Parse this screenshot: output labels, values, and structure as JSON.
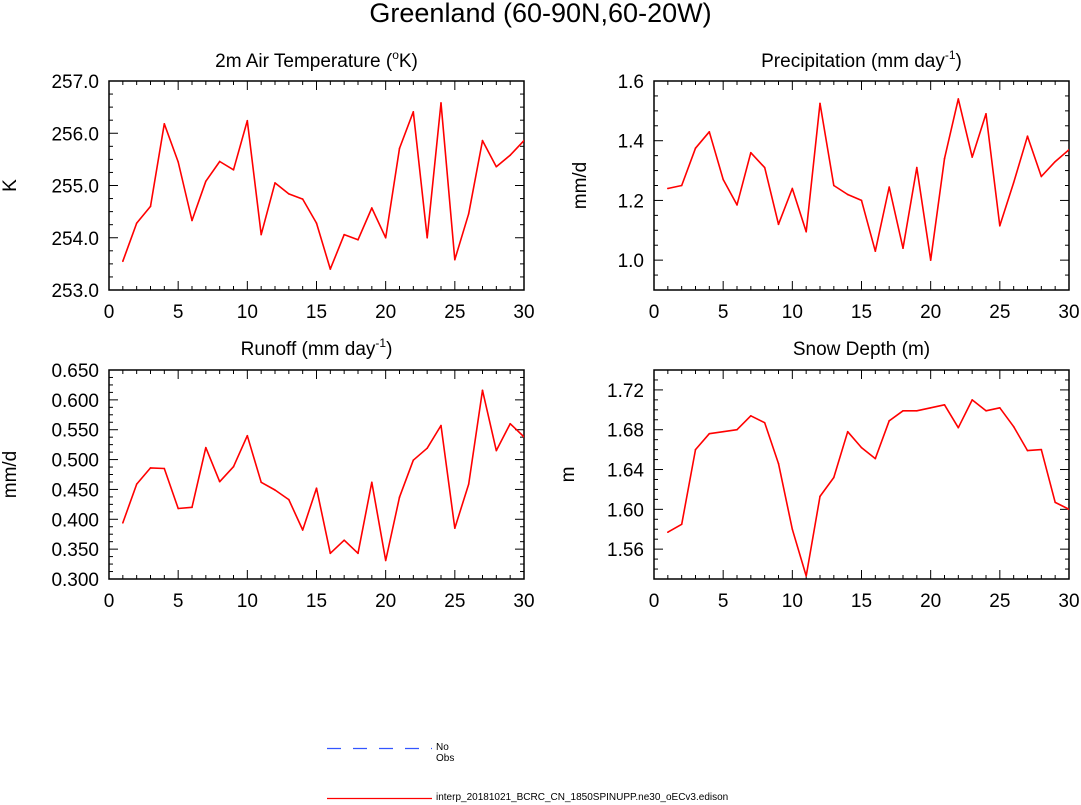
{
  "figure": {
    "title": "Greenland (60-90N,60-20W)",
    "line_color": "#ff0000",
    "legend": [
      {
        "label": "No Obs",
        "color": "#3355ff",
        "style": "dashed"
      },
      {
        "label": "interp_20181021_BCRC_CN_1850SPINUPP.ne30_oECv3.edison",
        "color": "#ff0000",
        "style": "solid"
      }
    ]
  },
  "chart_data": [
    {
      "type": "line",
      "title": "2m Air Temperature (",
      "title_sup": "o",
      "title_tail": "K)",
      "xlabel": "",
      "ylabel": "K",
      "xlim": [
        0,
        30
      ],
      "ylim": [
        253.0,
        257.0
      ],
      "xticks": [
        0,
        5,
        10,
        15,
        20,
        25,
        30
      ],
      "yticks": [
        "253.0",
        "254.0",
        "255.0",
        "256.0",
        "257.0"
      ],
      "x": [
        1,
        2,
        3,
        4,
        5,
        6,
        7,
        8,
        9,
        10,
        11,
        12,
        13,
        14,
        15,
        16,
        17,
        18,
        19,
        20,
        21,
        22,
        23,
        24,
        25,
        26,
        27,
        28,
        29,
        30
      ],
      "values": [
        253.55,
        254.28,
        254.6,
        256.18,
        255.45,
        254.33,
        255.08,
        255.46,
        255.3,
        256.24,
        254.06,
        255.05,
        254.84,
        254.74,
        254.28,
        253.4,
        254.06,
        253.96,
        254.57,
        254.0,
        255.71,
        256.41,
        254.0,
        256.58,
        253.58,
        254.46,
        255.86,
        255.36,
        255.58,
        255.86
      ],
      "series_name": "interp_20181021_BCRC_CN_1850SPINUPP.ne30_oECv3.edison"
    },
    {
      "type": "line",
      "title": "Precipitation (mm day",
      "title_sup": "-1",
      "title_tail": ")",
      "xlabel": "",
      "ylabel": "mm/d",
      "xlim": [
        0,
        30
      ],
      "ylim": [
        0.9,
        1.6
      ],
      "xticks": [
        0,
        5,
        10,
        15,
        20,
        25,
        30
      ],
      "yticks": [
        "1.0",
        "1.2",
        "1.4",
        "1.6"
      ],
      "x": [
        1,
        2,
        3,
        4,
        5,
        6,
        7,
        8,
        9,
        10,
        11,
        12,
        13,
        14,
        15,
        16,
        17,
        18,
        19,
        20,
        21,
        22,
        23,
        24,
        25,
        26,
        27,
        28,
        29,
        30
      ],
      "values": [
        1.24,
        1.25,
        1.375,
        1.43,
        1.27,
        1.185,
        1.36,
        1.31,
        1.12,
        1.24,
        1.095,
        1.525,
        1.25,
        1.22,
        1.2,
        1.03,
        1.245,
        1.04,
        1.31,
        1.0,
        1.34,
        1.54,
        1.345,
        1.49,
        1.115,
        1.26,
        1.415,
        1.28,
        1.33,
        1.37
      ],
      "series_name": "interp_20181021_BCRC_CN_1850SPINUPP.ne30_oECv3.edison"
    },
    {
      "type": "line",
      "title": "Runoff (mm day",
      "title_sup": "-1",
      "title_tail": ")",
      "xlabel": "",
      "ylabel": "mm/d",
      "xlim": [
        0,
        30
      ],
      "ylim": [
        0.3,
        0.65
      ],
      "xticks": [
        0,
        5,
        10,
        15,
        20,
        25,
        30
      ],
      "yticks": [
        "0.300",
        "0.350",
        "0.400",
        "0.450",
        "0.500",
        "0.550",
        "0.600",
        "0.650"
      ],
      "x": [
        1,
        2,
        3,
        4,
        5,
        6,
        7,
        8,
        9,
        10,
        11,
        12,
        13,
        14,
        15,
        16,
        17,
        18,
        19,
        20,
        21,
        22,
        23,
        24,
        25,
        26,
        27,
        28,
        29,
        30
      ],
      "values": [
        0.394,
        0.459,
        0.486,
        0.485,
        0.418,
        0.42,
        0.52,
        0.463,
        0.488,
        0.54,
        0.462,
        0.449,
        0.433,
        0.382,
        0.452,
        0.343,
        0.365,
        0.343,
        0.462,
        0.331,
        0.437,
        0.499,
        0.519,
        0.557,
        0.385,
        0.459,
        0.616,
        0.515,
        0.56,
        0.538
      ],
      "series_name": "interp_20181021_BCRC_CN_1850SPINUPP.ne30_oECv3.edison"
    },
    {
      "type": "line",
      "title": "Snow Depth (m)",
      "title_sup": "",
      "title_tail": "",
      "xlabel": "",
      "ylabel": "m",
      "xlim": [
        0,
        30
      ],
      "ylim": [
        1.53,
        1.74
      ],
      "xticks": [
        0,
        5,
        10,
        15,
        20,
        25,
        30
      ],
      "yticks": [
        "1.56",
        "1.60",
        "1.64",
        "1.68",
        "1.72"
      ],
      "x": [
        1,
        2,
        3,
        4,
        5,
        6,
        7,
        8,
        9,
        10,
        11,
        12,
        13,
        14,
        15,
        16,
        17,
        18,
        19,
        20,
        21,
        22,
        23,
        24,
        25,
        26,
        27,
        28,
        29,
        30
      ],
      "values": [
        1.577,
        1.585,
        1.66,
        1.676,
        1.678,
        1.68,
        1.694,
        1.687,
        1.646,
        1.58,
        1.533,
        1.613,
        1.632,
        1.678,
        1.662,
        1.651,
        1.689,
        1.699,
        1.699,
        1.702,
        1.705,
        1.682,
        1.71,
        1.699,
        1.702,
        1.683,
        1.659,
        1.66,
        1.607,
        1.6
      ],
      "series_name": "interp_20181021_BCRC_CN_1850SPINUPP.ne30_oECv3.edison"
    }
  ]
}
